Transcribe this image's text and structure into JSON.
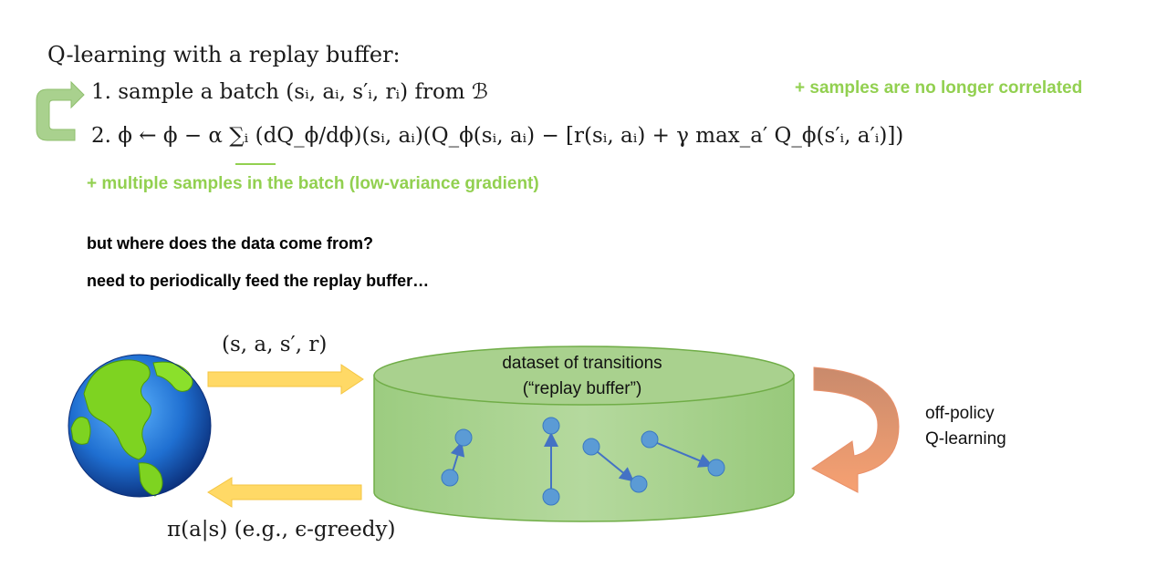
{
  "title": "Q-learning with a replay buffer:",
  "steps": {
    "step1": "1. sample a batch (sᵢ, aᵢ, s′ᵢ, rᵢ) from ℬ",
    "step2": "2. ϕ ← ϕ − α ∑ᵢ (dQ_ϕ/dϕ)(sᵢ, aᵢ)(Q_ϕ(sᵢ, aᵢ) − [r(sᵢ, aᵢ) + γ max_a′ Q_ϕ(s′ᵢ, a′ᵢ)])"
  },
  "notes": {
    "uncorrelated": "+ samples are no longer correlated",
    "low_variance": "+ multiple samples in the batch (low-variance gradient)",
    "question": "but where does the data come from?",
    "answer": "need to periodically feed the replay buffer…"
  },
  "diagram": {
    "transition_label": "(s, a, s′, r)",
    "policy_label": "π(a|s) (e.g., ϵ-greedy)",
    "dataset_line1": "dataset of transitions",
    "dataset_line2": "(“replay buffer”)",
    "offpolicy_line1": "off-policy",
    "offpolicy_line2": "Q-learning"
  },
  "colors": {
    "green_text": "#92d050",
    "buffer_fill": "#a9d18e",
    "buffer_stroke": "#70ad47",
    "arrow_yellow": "#ffd966",
    "arrow_orange": "#f4b183",
    "loop_green": "#a9d18e",
    "node_blue": "#5b9bd5",
    "edge_blue": "#4472c4"
  },
  "icons": {
    "earth": "earth-globe-icon",
    "loop": "loop-arrow-icon"
  }
}
